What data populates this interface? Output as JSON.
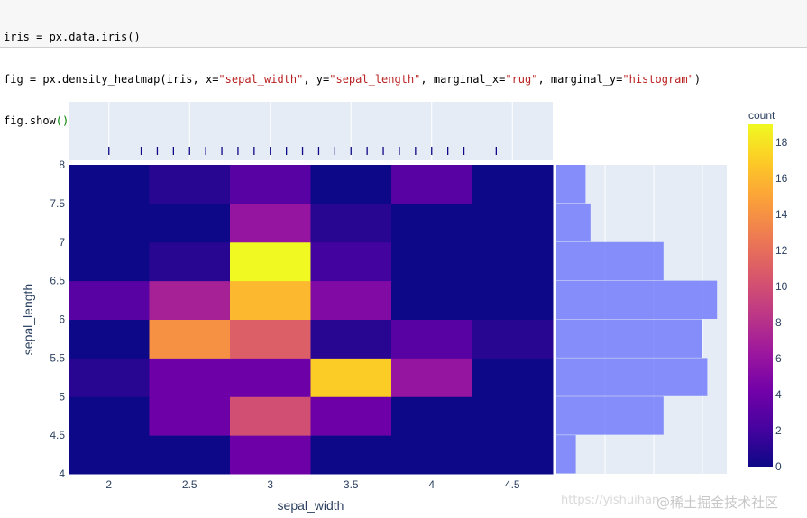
{
  "code": {
    "line1_a": "iris = px.data.iris()",
    "line2_a": "fig = px.density_heatmap(iris, x=",
    "line2_s1": "\"sepal_width\"",
    "line2_b": ", y=",
    "line2_s2": "\"sepal_length\"",
    "line2_c": ", marginal_x=",
    "line2_s3": "\"rug\"",
    "line2_d": ", marginal_y=",
    "line2_s4": "\"histogram\"",
    "line2_e": ")",
    "line3_a": "fig.show",
    "line3_b": "()"
  },
  "watermark": {
    "url": "https://yishuihan",
    "site": "@稀土掘金技术社区"
  },
  "colors": {
    "plot_bg": "#e5ecf6",
    "hist_bar": "#636efa",
    "axis_text": "#2a3f5f",
    "rug_tick": "#0d0887"
  },
  "chart_data": {
    "type": "heatmap",
    "xlabel": "sepal_width",
    "ylabel": "sepal_length",
    "x_bin_edges": [
      1.75,
      2.25,
      2.75,
      3.25,
      3.75,
      4.25,
      4.75
    ],
    "y_bin_edges": [
      4,
      4.5,
      5,
      5.5,
      6,
      6.5,
      7,
      7.5,
      8
    ],
    "x_ticks": [
      2,
      2.5,
      3,
      3.5,
      4,
      4.5
    ],
    "x_tick_labels": [
      "2",
      "2.5",
      "3",
      "3.5",
      "4",
      "4.5"
    ],
    "y_ticks": [
      4,
      4.5,
      5,
      5.5,
      6,
      6.5,
      7,
      7.5,
      8
    ],
    "y_tick_labels": [
      "4",
      "4.5",
      "5",
      "5.5",
      "6",
      "6.5",
      "7",
      "7.5",
      "8"
    ],
    "z_rows_bottom_to_top": [
      [
        0,
        0,
        4,
        0,
        0,
        0
      ],
      [
        0,
        4,
        10,
        4,
        0,
        0
      ],
      [
        1,
        4,
        4,
        17,
        6,
        0
      ],
      [
        0,
        14,
        11,
        1,
        3,
        1
      ],
      [
        3,
        7,
        16,
        5,
        0,
        0
      ],
      [
        0,
        1,
        19,
        2,
        0,
        0
      ],
      [
        0,
        0,
        6,
        1,
        0,
        0
      ],
      [
        0,
        1,
        3,
        0,
        3,
        0
      ]
    ],
    "colorbar": {
      "title": "count",
      "range": [
        0,
        19
      ],
      "ticks": [
        0,
        2,
        4,
        6,
        8,
        10,
        12,
        14,
        16,
        18
      ],
      "tick_labels": [
        "0",
        "2",
        "4",
        "6",
        "8",
        "10",
        "12",
        "14",
        "16",
        "18"
      ]
    },
    "marginal_x_rug": [
      2,
      2.2,
      2.3,
      2.4,
      2.5,
      2.6,
      2.7,
      2.8,
      2.9,
      3,
      3.1,
      3.2,
      3.3,
      3.4,
      3.5,
      3.6,
      3.7,
      3.8,
      3.9,
      4,
      4.1,
      4.2,
      4.4
    ],
    "marginal_y_histogram": [
      4,
      22,
      31,
      30,
      33,
      22,
      7,
      6
    ]
  }
}
